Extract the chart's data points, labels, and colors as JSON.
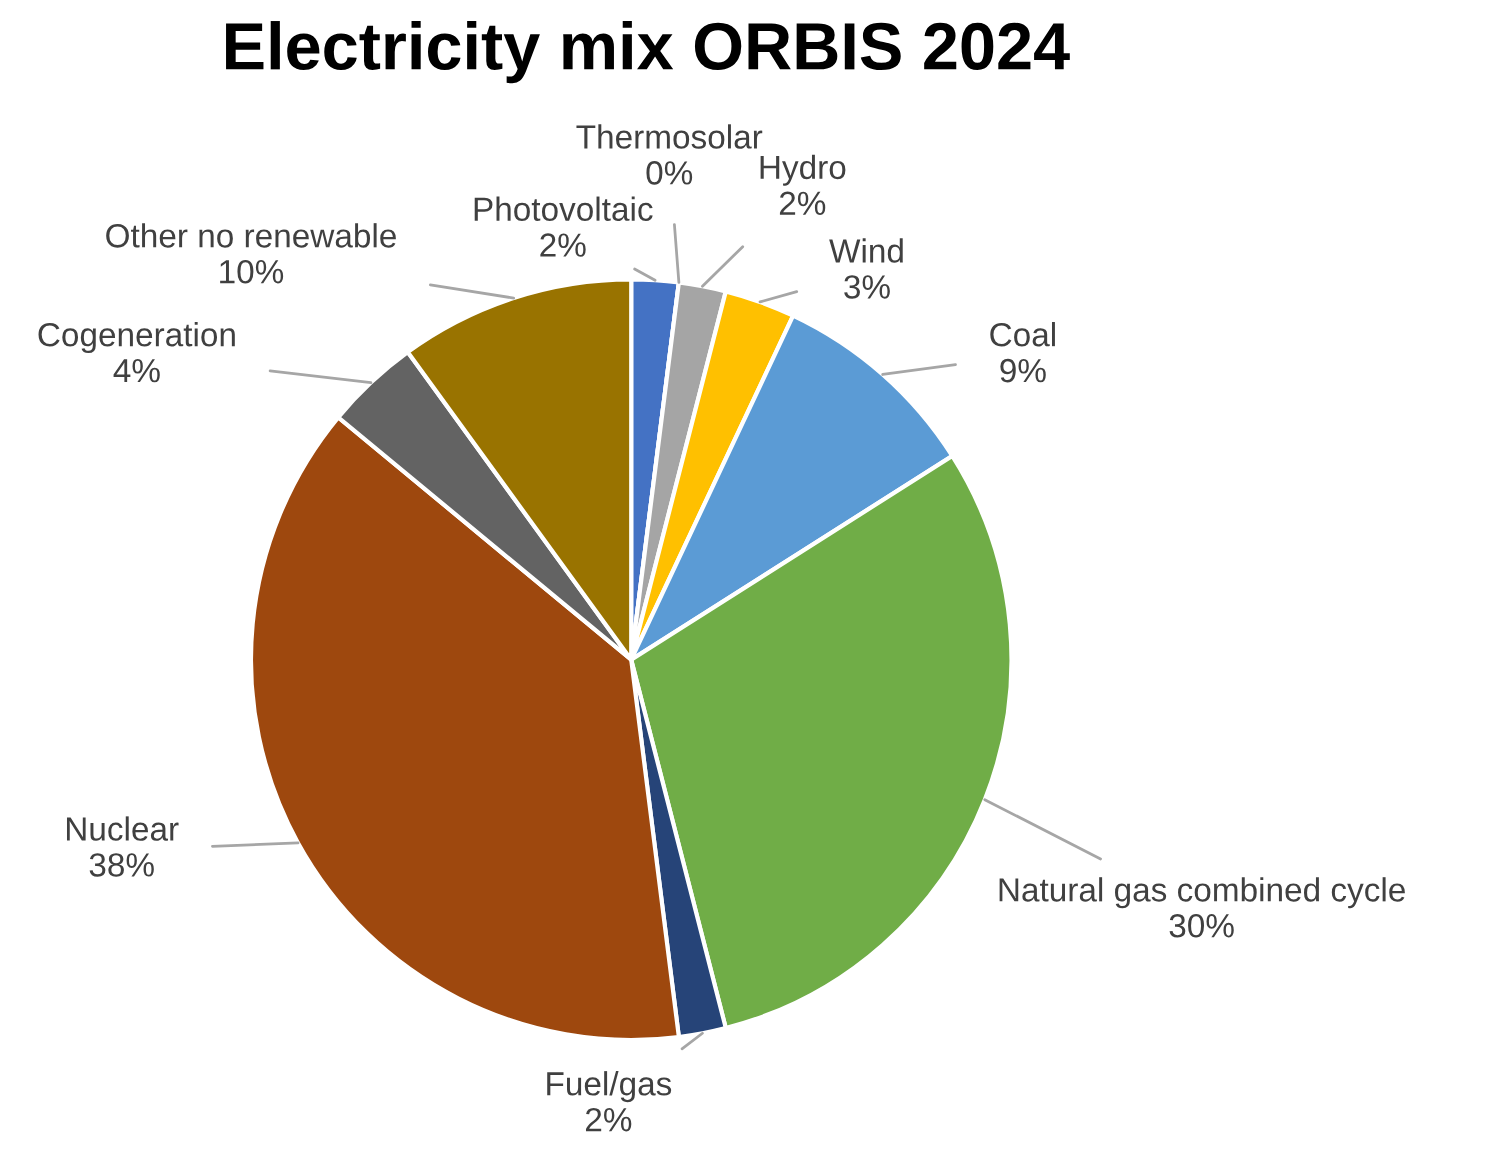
{
  "chart_data": {
    "type": "pie",
    "title": "Electricity mix ORBIS 2024",
    "categories": [
      "Photovoltaic",
      "Thermosolar",
      "Hydro",
      "Wind",
      "Coal",
      "Natural gas combined cycle",
      "Fuel/gas",
      "Nuclear",
      "Cogeneration",
      "Other no renewable"
    ],
    "values": [
      2,
      0,
      2,
      3,
      9,
      30,
      2,
      38,
      4,
      10
    ],
    "value_labels": [
      "2%",
      "0%",
      "2%",
      "3%",
      "9%",
      "30%",
      "2%",
      "38%",
      "4%",
      "10%"
    ],
    "colors": [
      "#4472c4",
      "#ed7d31",
      "#a5a5a5",
      "#ffc000",
      "#5b9bd5",
      "#70ad47",
      "#264478",
      "#9e480e",
      "#636363",
      "#997300"
    ]
  }
}
